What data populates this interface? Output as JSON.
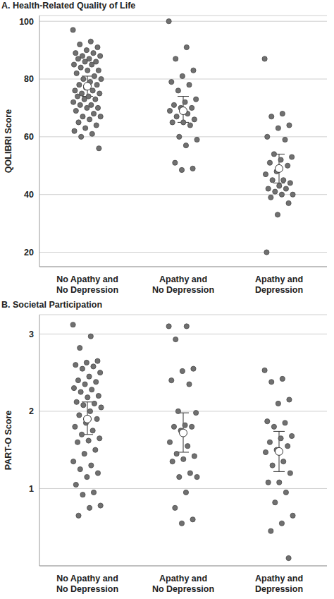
{
  "chart_data": [
    {
      "type": "scatter",
      "title": "A. Health-Related Quality of Life",
      "y_label": "QOLIBRI Score",
      "categories": [
        "No Apathy and No Depression",
        "Apathy and No Depression",
        "Apathy and Depression"
      ],
      "values": [
        [
          97,
          93,
          92,
          91,
          90,
          89,
          89,
          88,
          88,
          87,
          87,
          86,
          86,
          85,
          85,
          84,
          83,
          83,
          82,
          81,
          80,
          80,
          79,
          78,
          78,
          77,
          76,
          76,
          75,
          75,
          74,
          74,
          73,
          73,
          72,
          71,
          71,
          70,
          70,
          69,
          68,
          67,
          67,
          66,
          65,
          64,
          63,
          62,
          61,
          60,
          56
        ],
        [
          100,
          91,
          87,
          83,
          81,
          79,
          78,
          76,
          73,
          72,
          71,
          70,
          70,
          69,
          68,
          67,
          66,
          65,
          65,
          64,
          60,
          59,
          57,
          51,
          49,
          48.5
        ],
        [
          87,
          68,
          67,
          64,
          63,
          60,
          59,
          54,
          53,
          52,
          51,
          50,
          48,
          47,
          45,
          45,
          44,
          43,
          42,
          42,
          41,
          40,
          40,
          39,
          37,
          33,
          20
        ]
      ],
      "means": [
        77.5,
        69,
        49
      ],
      "ci_lower": [
        74,
        65,
        44
      ],
      "ci_upper": [
        81,
        74,
        54
      ],
      "color": "#707070",
      "ylim": [
        15,
        102
      ],
      "yticks": [
        20,
        40,
        60,
        80,
        100
      ],
      "grid": true
    },
    {
      "type": "scatter",
      "title": "B. Societal Participation",
      "y_label": "PART-O Score",
      "categories": [
        "No Apathy and No Depression",
        "Apathy and No Depression",
        "Apathy and Depression"
      ],
      "values": [
        [
          3.12,
          2.97,
          2.82,
          2.65,
          2.63,
          2.6,
          2.58,
          2.55,
          2.5,
          2.45,
          2.4,
          2.38,
          2.35,
          2.3,
          2.28,
          2.25,
          2.2,
          2.18,
          2.12,
          2.1,
          2.08,
          2.05,
          2.0,
          1.95,
          1.9,
          1.85,
          1.8,
          1.75,
          1.7,
          1.65,
          1.62,
          1.6,
          1.5,
          1.45,
          1.35,
          1.3,
          1.25,
          1.2,
          1.15,
          1.05,
          0.95,
          0.92,
          0.78,
          0.75,
          0.65
        ],
        [
          3.1,
          3.1,
          2.93,
          2.55,
          2.52,
          2.4,
          2.35,
          2.0,
          1.98,
          1.82,
          1.8,
          1.8,
          1.75,
          1.6,
          1.55,
          1.45,
          1.42,
          1.38,
          1.35,
          1.2,
          1.15,
          1.15,
          0.95,
          0.75,
          0.6,
          0.55
        ],
        [
          2.53,
          2.42,
          2.38,
          2.15,
          2.1,
          1.87,
          1.85,
          1.8,
          1.68,
          1.65,
          1.6,
          1.55,
          1.5,
          1.47,
          1.35,
          1.3,
          1.2,
          1.08,
          1.08,
          0.95,
          0.82,
          0.65,
          0.55,
          0.45,
          0.1
        ]
      ],
      "means": [
        1.9,
        1.72,
        1.48
      ],
      "ci_lower": [
        1.7,
        1.47,
        1.22
      ],
      "ci_upper": [
        2.12,
        1.98,
        1.74
      ],
      "color": "#707070",
      "ylim": [
        0,
        3.25
      ],
      "yticks": [
        1,
        2,
        3
      ],
      "grid": true
    }
  ]
}
